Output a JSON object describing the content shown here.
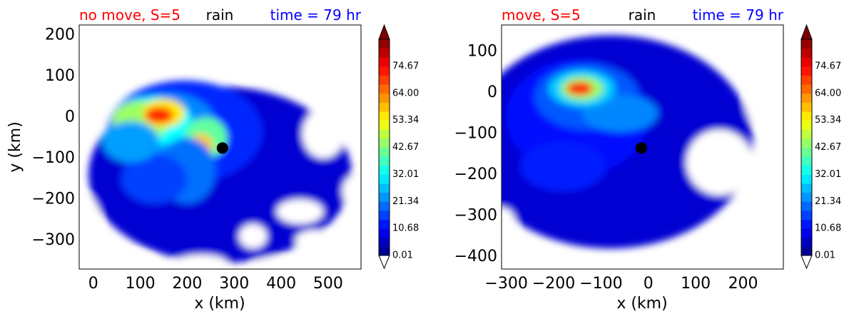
{
  "chart_data": [
    {
      "type": "heatmap",
      "title_left": "no move, S=5",
      "title_center": "rain",
      "title_right": "time = 79 hr",
      "title_colors": {
        "left": "#ff0000",
        "center": "#000000",
        "right": "#0000ff"
      },
      "xlabel": "x (km)",
      "ylabel": "y (km)",
      "xlim": [
        -30,
        570
      ],
      "ylim": [
        -370,
        225
      ],
      "xticks": [
        0,
        100,
        200,
        300,
        400,
        500
      ],
      "yticks": [
        200,
        100,
        0,
        -100,
        -200,
        -300
      ],
      "xtick_labels": [
        "0",
        "100",
        "200",
        "300",
        "400",
        "500"
      ],
      "ytick_labels": [
        "200",
        "100",
        "0",
        "−100",
        "−200",
        "−300"
      ],
      "marker": {
        "x": 275,
        "y": -75
      },
      "colorbar": {
        "ticks": [
          74.67,
          64.0,
          53.34,
          42.67,
          32.01,
          21.34,
          10.68,
          0.01
        ],
        "tick_labels": [
          "74.67",
          "64.00",
          "53.34",
          "42.67",
          "32.01",
          "21.34",
          "10.68",
          "0.01"
        ],
        "min": 0.01,
        "max": 85.33,
        "extend": "both"
      },
      "blobs": [
        {
          "x": 270,
          "y": -140,
          "rx": 280,
          "ry": 215,
          "v": 7
        },
        {
          "x": 195,
          "y": -35,
          "rx": 165,
          "ry": 125,
          "v": 14
        },
        {
          "x": 160,
          "y": -15,
          "rx": 100,
          "ry": 75,
          "v": 22
        },
        {
          "x": 125,
          "y": -10,
          "rx": 85,
          "ry": 60,
          "v": 32
        },
        {
          "x": 100,
          "y": -10,
          "rx": 60,
          "ry": 50,
          "v": 45
        },
        {
          "x": 150,
          "y": 10,
          "rx": 45,
          "ry": 35,
          "v": 55
        },
        {
          "x": 140,
          "y": 5,
          "rx": 30,
          "ry": 20,
          "v": 72
        },
        {
          "x": 240,
          "y": -50,
          "rx": 45,
          "ry": 50,
          "v": 40
        },
        {
          "x": 230,
          "y": -70,
          "rx": 25,
          "ry": 30,
          "v": 58
        },
        {
          "x": 200,
          "y": -130,
          "rx": 60,
          "ry": 80,
          "v": 20
        },
        {
          "x": 130,
          "y": -150,
          "rx": 70,
          "ry": 60,
          "v": 16
        },
        {
          "x": 80,
          "y": -60,
          "rx": 60,
          "ry": 50,
          "v": 24
        }
      ],
      "holes": [
        {
          "x": 0,
          "y": 210,
          "rx": 45,
          "ry": 20
        },
        {
          "x": 130,
          "y": 200,
          "rx": 30,
          "ry": 20
        },
        {
          "x": 255,
          "y": 205,
          "rx": 35,
          "ry": 18
        },
        {
          "x": 355,
          "y": 205,
          "rx": 40,
          "ry": 18
        },
        {
          "x": 430,
          "y": 190,
          "rx": 40,
          "ry": 25
        },
        {
          "x": 30,
          "y": 140,
          "rx": 40,
          "ry": 25
        },
        {
          "x": 520,
          "y": 100,
          "rx": 30,
          "ry": 40
        },
        {
          "x": 410,
          "y": 110,
          "rx": 25,
          "ry": 15
        },
        {
          "x": 330,
          "y": 110,
          "rx": 30,
          "ry": 15
        },
        {
          "x": 490,
          "y": -40,
          "rx": 45,
          "ry": 60
        },
        {
          "x": 440,
          "y": -230,
          "rx": 50,
          "ry": 30
        },
        {
          "x": 560,
          "y": -180,
          "rx": 30,
          "ry": 40
        },
        {
          "x": -20,
          "y": -250,
          "rx": 35,
          "ry": 60
        },
        {
          "x": 60,
          "y": -355,
          "rx": 70,
          "ry": 25
        },
        {
          "x": 230,
          "y": -355,
          "rx": 55,
          "ry": 20
        },
        {
          "x": 380,
          "y": -360,
          "rx": 40,
          "ry": 18
        },
        {
          "x": 470,
          "y": -300,
          "rx": 40,
          "ry": 25
        },
        {
          "x": 545,
          "y": -340,
          "rx": 30,
          "ry": 35
        },
        {
          "x": 340,
          "y": -290,
          "rx": 30,
          "ry": 30
        }
      ]
    },
    {
      "type": "heatmap",
      "title_left": "move, S=5",
      "title_center": "rain",
      "title_right": "time = 79 hr",
      "title_colors": {
        "left": "#ff0000",
        "center": "#000000",
        "right": "#0000ff"
      },
      "xlabel": "x (km)",
      "ylabel": "",
      "xlim": [
        -310,
        285
      ],
      "ylim": [
        -430,
        165
      ],
      "xticks": [
        -300,
        -200,
        -100,
        0,
        100,
        200
      ],
      "yticks": [
        100,
        0,
        -100,
        -200,
        -300,
        -400
      ],
      "xtick_labels": [
        "−300",
        "−200",
        "−100",
        "0",
        "100",
        "200"
      ],
      "ytick_labels": [
        "100",
        "0",
        "−100",
        "−200",
        "−300",
        "−400"
      ],
      "marker": {
        "x": -15,
        "y": -135
      },
      "colorbar": {
        "ticks": [
          74.67,
          64.0,
          53.34,
          42.67,
          32.01,
          21.34,
          10.68,
          0.01
        ],
        "tick_labels": [
          "74.67",
          "64.00",
          "53.34",
          "42.67",
          "32.01",
          "21.34",
          "10.68",
          "0.01"
        ],
        "min": 0.01,
        "max": 85.33,
        "extend": "both"
      },
      "blobs": [
        {
          "x": -80,
          "y": -120,
          "rx": 300,
          "ry": 260,
          "v": 7
        },
        {
          "x": -150,
          "y": -60,
          "rx": 150,
          "ry": 140,
          "v": 12
        },
        {
          "x": -130,
          "y": -10,
          "rx": 110,
          "ry": 80,
          "v": 18
        },
        {
          "x": -60,
          "y": -50,
          "rx": 80,
          "ry": 45,
          "v": 22
        },
        {
          "x": -140,
          "y": 10,
          "rx": 70,
          "ry": 45,
          "v": 28
        },
        {
          "x": -140,
          "y": 10,
          "rx": 45,
          "ry": 30,
          "v": 45
        },
        {
          "x": -145,
          "y": 10,
          "rx": 28,
          "ry": 17,
          "v": 72
        },
        {
          "x": -180,
          "y": -180,
          "rx": 90,
          "ry": 60,
          "v": 13
        }
      ],
      "holes": [
        {
          "x": 240,
          "y": 150,
          "rx": 60,
          "ry": 25
        },
        {
          "x": 140,
          "y": 130,
          "rx": 40,
          "ry": 18
        },
        {
          "x": 260,
          "y": 60,
          "rx": 35,
          "ry": 30
        },
        {
          "x": 245,
          "y": -30,
          "rx": 40,
          "ry": 55
        },
        {
          "x": 150,
          "y": -170,
          "rx": 70,
          "ry": 80
        },
        {
          "x": 250,
          "y": -260,
          "rx": 40,
          "ry": 60
        },
        {
          "x": 200,
          "y": -390,
          "rx": 60,
          "ry": 30
        },
        {
          "x": -310,
          "y": -320,
          "rx": 30,
          "ry": 40
        },
        {
          "x": 75,
          "y": -420,
          "rx": 40,
          "ry": 20
        }
      ]
    }
  ]
}
